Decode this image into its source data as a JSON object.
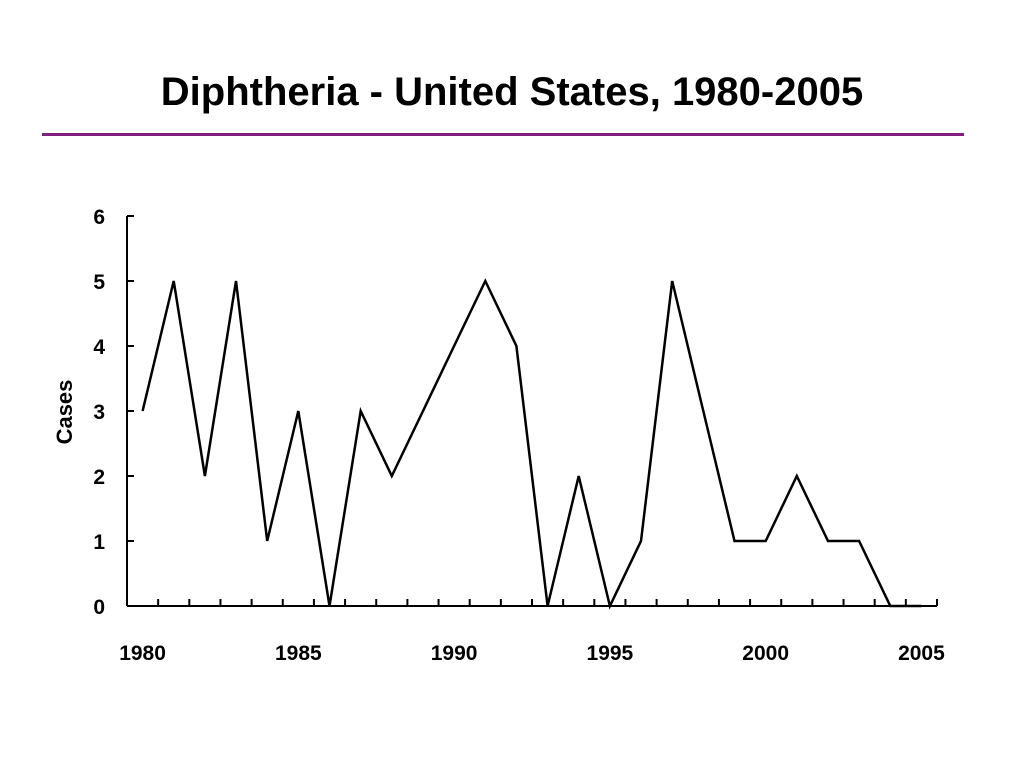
{
  "slide": {
    "title": "Diphtheria - United States, 1980-2005",
    "rule_color": "#7f1f7f"
  },
  "chart_data": {
    "type": "line",
    "title": "Diphtheria - United States, 1980-2005",
    "xlabel": "",
    "ylabel": "Cases",
    "x": [
      1980,
      1981,
      1982,
      1983,
      1984,
      1985,
      1986,
      1987,
      1988,
      1989,
      1990,
      1991,
      1992,
      1993,
      1994,
      1995,
      1996,
      1997,
      1998,
      1999,
      2000,
      2001,
      2002,
      2003,
      2004,
      2005
    ],
    "series": [
      {
        "values": [
          3,
          5,
          2,
          5,
          1,
          3,
          0,
          3,
          2,
          3,
          4,
          5,
          4,
          0,
          2,
          0,
          1,
          5,
          3,
          1,
          1,
          2,
          1,
          1,
          0,
          0
        ]
      }
    ],
    "xlim": [
      1979.5,
      2005.5
    ],
    "ylim": [
      0,
      6
    ],
    "x_tick_labels": [
      "1980",
      "1985",
      "1990",
      "1995",
      "2000",
      "2005"
    ],
    "y_tick_labels": [
      "0",
      "1",
      "2",
      "3",
      "4",
      "5",
      "6"
    ],
    "grid": false,
    "line_color": "#000000"
  }
}
